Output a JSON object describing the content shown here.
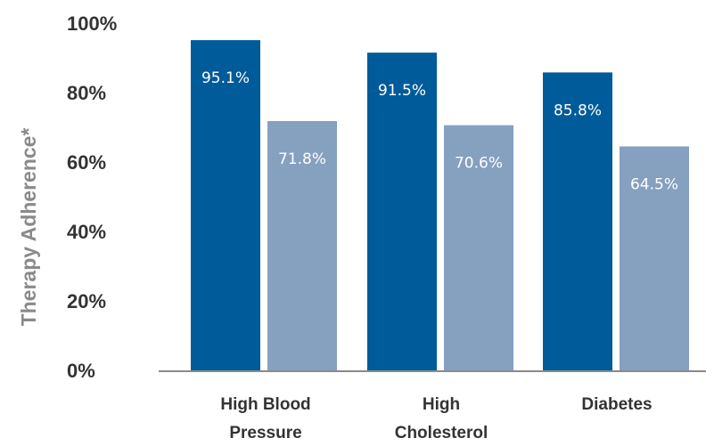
{
  "chart_data": {
    "type": "bar",
    "title": "",
    "xlabel": "",
    "ylabel": "Therapy Adherence*",
    "ylim": [
      0,
      100
    ],
    "yticks": [
      "0%",
      "20%",
      "40%",
      "60%",
      "80%",
      "100%"
    ],
    "categories": [
      [
        "High Blood",
        "Pressure"
      ],
      [
        "High",
        "Cholesterol"
      ],
      [
        "Diabetes"
      ]
    ],
    "series": [
      {
        "values": [
          95.1,
          91.5,
          85.8
        ],
        "labels": [
          "95.1%",
          "91.5%",
          "85.8%"
        ],
        "color": "#005b9a"
      },
      {
        "values": [
          71.8,
          70.6,
          64.5
        ],
        "labels": [
          "71.8%",
          "70.6%",
          "64.5%"
        ],
        "color": "#86a0c0"
      }
    ],
    "grid": false,
    "legend": "none"
  }
}
